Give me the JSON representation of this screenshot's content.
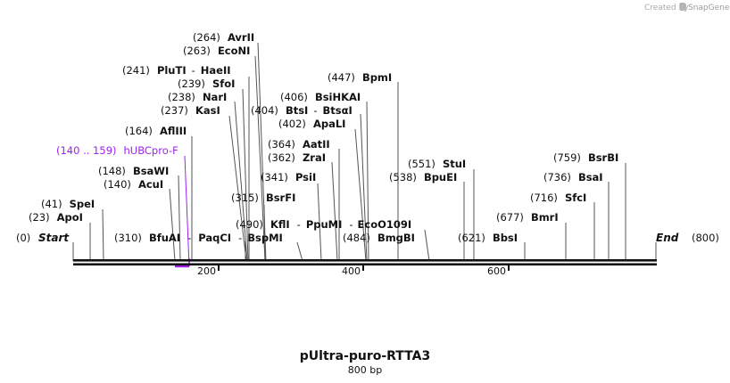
{
  "header": {
    "created_by": "Created by",
    "brand": "SnapGene"
  },
  "plasmid": {
    "name": "pUltra-puro-RTTA3",
    "size_label": "800 bp",
    "length": 800
  },
  "map": {
    "start": {
      "pos": "(0)",
      "label": "Start"
    },
    "end": {
      "pos": "(800)",
      "label": "End"
    },
    "ticks": [
      "200",
      "400",
      "600"
    ],
    "sites": [
      {
        "pos": "(264)",
        "name": "AvrII"
      },
      {
        "pos": "(263)",
        "name": "EcoNI"
      },
      {
        "pos": "(241)",
        "name": "PluTI",
        "sep": "-",
        "name2": "HaeII"
      },
      {
        "pos": "(239)",
        "name": "SfoI"
      },
      {
        "pos": "(238)",
        "name": "NarI"
      },
      {
        "pos": "(237)",
        "name": "KasI"
      },
      {
        "pos": "(164)",
        "name": "AflIII"
      },
      {
        "pos": "(148)",
        "name": "BsaWI"
      },
      {
        "pos": "(140)",
        "name": "AcuI"
      },
      {
        "pos": "(41)",
        "name": "SpeI"
      },
      {
        "pos": "(23)",
        "name": "ApoI"
      },
      {
        "pos": "(310)",
        "name": "BfuAI",
        "sep": "-",
        "name2": "PaqCI",
        "sep2": "-",
        "name3": "BspMI"
      },
      {
        "pos": "(447)",
        "name": "BpmI"
      },
      {
        "pos": "(406)",
        "name": "BsiHKAI"
      },
      {
        "pos": "(404)",
        "name": "BtsI",
        "sep": "-",
        "name2": "BtsαI"
      },
      {
        "pos": "(402)",
        "name": "ApaLI"
      },
      {
        "pos": "(364)",
        "name": "AatII"
      },
      {
        "pos": "(362)",
        "name": "ZraI"
      },
      {
        "pos": "(341)",
        "name": "PsiI"
      },
      {
        "pos": "(315)",
        "name": "BsrFI"
      },
      {
        "pos": "(490)",
        "name": "KflI",
        "sep": "-",
        "name2": "PpuMI",
        "sep2": "-",
        "name3": "EcoO109I"
      },
      {
        "pos": "(484)",
        "name": "BmgBI"
      },
      {
        "pos": "(551)",
        "name": "StuI"
      },
      {
        "pos": "(538)",
        "name": "BpuEI"
      },
      {
        "pos": "(621)",
        "name": "BbsI"
      },
      {
        "pos": "(677)",
        "name": "BmrI"
      },
      {
        "pos": "(716)",
        "name": "SfcI"
      },
      {
        "pos": "(736)",
        "name": "BsaI"
      },
      {
        "pos": "(759)",
        "name": "BsrBI"
      }
    ],
    "primer": {
      "pos": "(140 .. 159)",
      "name": "hUBCpro-F"
    }
  },
  "colors": {
    "primer": "#a020f0",
    "backbone": "#111111",
    "lines": "#555555"
  }
}
